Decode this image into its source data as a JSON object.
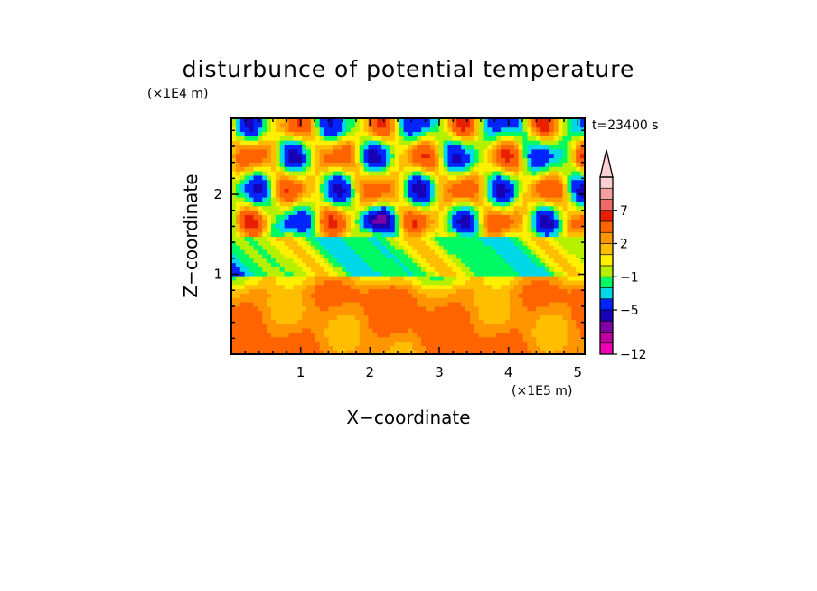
{
  "chart_data": {
    "type": "heatmap",
    "title": "disturbunce of potential temperature",
    "xlabel": "X−coordinate",
    "ylabel": "Z−coordinate",
    "x_unit": "(×1E5 m)",
    "y_unit": "(×1E4 m)",
    "time_label": "t=23400 s",
    "xlim": [
      0,
      5.1
    ],
    "ylim": [
      0,
      2.95
    ],
    "x_ticks": [
      1,
      2,
      3,
      4,
      5
    ],
    "y_ticks": [
      1,
      2
    ],
    "colorbar": {
      "levels": [
        -12,
        -11,
        -9,
        -7,
        -5,
        -3,
        -2,
        -1,
        0,
        1,
        2,
        3,
        5,
        7,
        9,
        11
      ],
      "tick_labels": [
        "−12",
        "−5",
        "−1",
        "2",
        "7"
      ],
      "tick_values": [
        -12,
        -5,
        -1,
        2,
        7
      ],
      "colors": [
        "#f000b4",
        "#c0009e",
        "#8000a8",
        "#1800b4",
        "#0024ff",
        "#00d7e8",
        "#00fa64",
        "#b4f000",
        "#fff000",
        "#ffbe00",
        "#ff9600",
        "#ff6400",
        "#e82000",
        "#f06a6a",
        "#f5a0a0",
        "#fcd0d0"
      ],
      "extend": "max"
    }
  }
}
